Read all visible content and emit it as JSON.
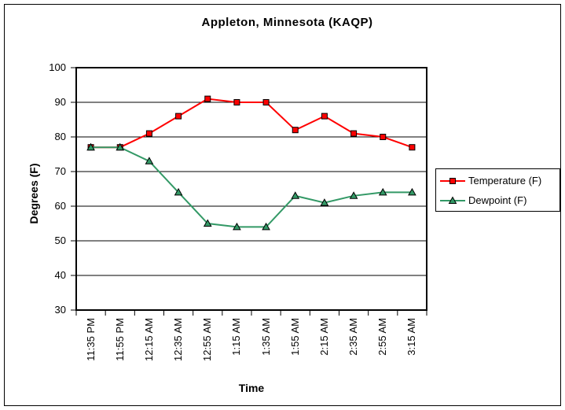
{
  "chart_data": {
    "type": "line",
    "title": "Appleton, Minnesota (KAQP)",
    "xlabel": "Time",
    "ylabel": "Degrees (F)",
    "ylim": [
      30,
      100
    ],
    "ytick_step": 10,
    "grid": true,
    "legend_position": "right",
    "categories": [
      "11:35 PM",
      "11:55 PM",
      "12:15 AM",
      "12:35 AM",
      "12:55 AM",
      "1:15 AM",
      "1:35 AM",
      "1:55 AM",
      "2:15 AM",
      "2:35 AM",
      "2:55 AM",
      "3:15 AM"
    ],
    "series": [
      {
        "name": "Temperature (F)",
        "color": "#ff0000",
        "marker": "square",
        "values": [
          77,
          77,
          81,
          86,
          91,
          90,
          90,
          82,
          86,
          81,
          80,
          77
        ]
      },
      {
        "name": "Dewpoint (F)",
        "color": "#339966",
        "marker": "triangle",
        "values": [
          77,
          77,
          73,
          64,
          55,
          54,
          54,
          63,
          61,
          63,
          64,
          64
        ]
      }
    ],
    "colors": {
      "axis": "#000000",
      "grid": "#000000",
      "plot_background": "#ffffff",
      "page_background": "#ffffff",
      "frame_border": "#000000"
    }
  }
}
